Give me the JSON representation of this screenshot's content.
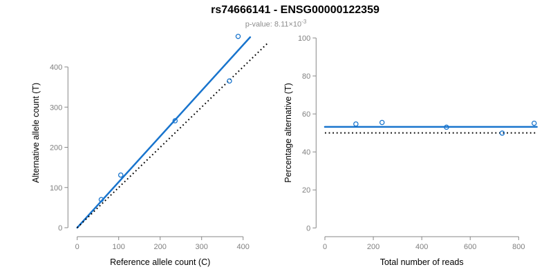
{
  "header": {
    "title": "rs74666141 - ENSG00000122359",
    "subtitle_prefix": "p-value: 8.11×10",
    "subtitle_exponent": "-3"
  },
  "colors": {
    "accent_blue": "#1874CD",
    "identity_line": "#000000",
    "axis_gray": "#878787",
    "tick_label_gray": "#7f7f7f",
    "axis_title_black": "#000000"
  },
  "chart_data": [
    {
      "id": "allele-counts",
      "type": "scatter",
      "xlabel": "Reference allele count (C)",
      "ylabel": "Alternative allele count (T)",
      "xlim": [
        0,
        400
      ],
      "ylim": [
        0,
        400
      ],
      "xticks": [
        0,
        100,
        200,
        300,
        400
      ],
      "yticks": [
        0,
        100,
        200,
        300,
        400
      ],
      "points": [
        [
          58,
          70
        ],
        [
          105,
          131
        ],
        [
          236,
          266
        ],
        [
          367,
          365
        ],
        [
          388,
          476
        ]
      ],
      "lines": [
        {
          "name": "fit-line",
          "style": "solid",
          "x1": 0,
          "y1": 0,
          "x2": 417,
          "y2": 474
        },
        {
          "name": "identity-line",
          "style": "dotted",
          "x1": 0,
          "y1": 0,
          "x2": 460,
          "y2": 460
        }
      ]
    },
    {
      "id": "percentage-alternative",
      "type": "scatter",
      "xlabel": "Total number of reads",
      "ylabel": "Percentage alternative (T)",
      "xlim": [
        0,
        800
      ],
      "ylim": [
        0,
        100
      ],
      "xticks": [
        0,
        200,
        400,
        600,
        800
      ],
      "yticks": [
        0,
        20,
        40,
        60,
        80,
        100
      ],
      "points": [
        [
          128,
          54.7
        ],
        [
          236,
          55.5
        ],
        [
          502,
          53.0
        ],
        [
          732,
          49.9
        ],
        [
          864,
          55.1
        ]
      ],
      "lines": [
        {
          "name": "fit-line",
          "style": "solid",
          "x1": 0,
          "y1": 53.2,
          "x2": 875,
          "y2": 53.2
        },
        {
          "name": "identity-line",
          "style": "dotted",
          "x1": 0,
          "y1": 50,
          "x2": 875,
          "y2": 50
        }
      ]
    }
  ]
}
